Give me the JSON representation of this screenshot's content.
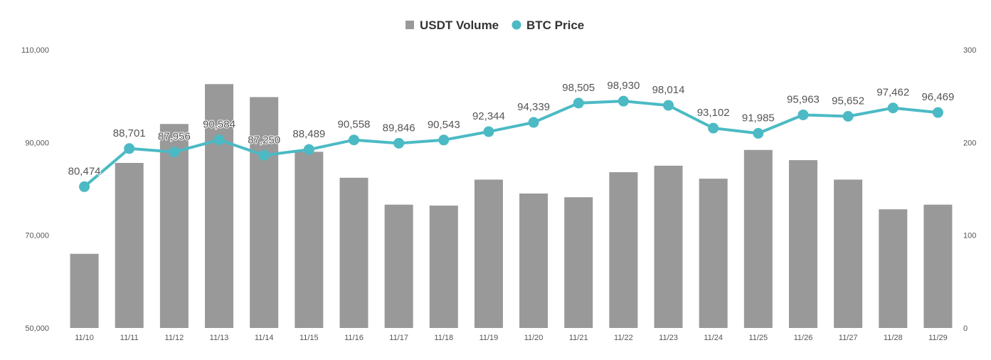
{
  "chart_data": {
    "type": "bar",
    "title": "",
    "categories": [
      "11/10",
      "11/11",
      "11/12",
      "11/13",
      "11/14",
      "11/15",
      "11/16",
      "11/17",
      "11/18",
      "11/19",
      "11/20",
      "11/21",
      "11/22",
      "11/23",
      "11/24",
      "11/25",
      "11/26",
      "11/27",
      "11/28",
      "11/29"
    ],
    "series": [
      {
        "name": "USDT Volume",
        "kind": "bar",
        "axis": "right",
        "color": "#999999",
        "values": [
          80,
          178,
          220,
          263,
          249,
          190,
          162,
          133,
          132,
          160,
          145,
          141,
          168,
          175,
          161,
          192,
          181,
          160,
          128,
          133
        ]
      },
      {
        "name": "BTC Price",
        "kind": "line",
        "axis": "left",
        "color": "#4BBAC4",
        "values": [
          80474,
          88701,
          87956,
          90584,
          87250,
          88489,
          90558,
          89846,
          90543,
          92344,
          94339,
          98505,
          98930,
          98014,
          93102,
          91985,
          95963,
          95652,
          97462,
          96469
        ],
        "labels": [
          "80,474",
          "88,701",
          "87,956",
          "90,584",
          "87,250",
          "88,489",
          "90,558",
          "89,846",
          "90,543",
          "92,344",
          "94,339",
          "98,505",
          "98,930",
          "98,014",
          "93,102",
          "91,985",
          "95,963",
          "95,652",
          "97,462",
          "96,469"
        ]
      }
    ],
    "y_left": {
      "ylim": [
        50000,
        110000
      ],
      "ticks": [
        50000,
        70000,
        90000,
        110000
      ],
      "tick_labels": [
        "50,000",
        "70,000",
        "90,000",
        "110,000"
      ]
    },
    "y_right": {
      "ylim": [
        0,
        300
      ],
      "ticks": [
        0,
        100,
        200,
        300
      ],
      "tick_labels": [
        "0",
        "100",
        "200",
        "300"
      ]
    },
    "xlabel": "",
    "ylabel": "",
    "grid": false,
    "legend": "top-center"
  }
}
